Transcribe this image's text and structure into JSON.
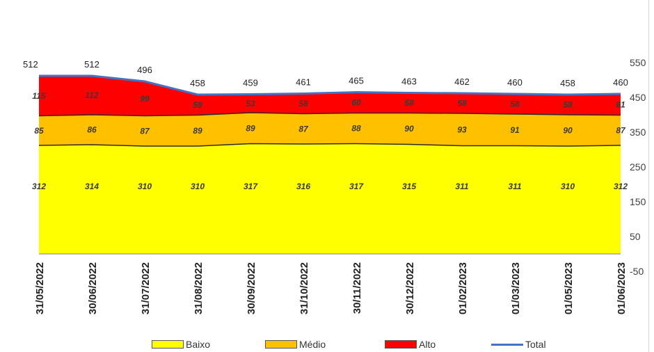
{
  "chart_data": {
    "type": "area",
    "categories": [
      "31/05/2022",
      "30/06/2022",
      "31/07/2022",
      "31/08/2022",
      "30/09/2022",
      "31/10/2022",
      "30/11/2022",
      "30/12/2022",
      "01/02/2023",
      "01/03/2023",
      "01/05/2023",
      "01/06/2023"
    ],
    "series": [
      {
        "name": "Baixo",
        "color": "#ffff00",
        "values": [
          312,
          314,
          310,
          310,
          317,
          316,
          317,
          315,
          311,
          311,
          310,
          312
        ]
      },
      {
        "name": "Médio",
        "color": "#ffc000",
        "values": [
          85,
          86,
          87,
          89,
          89,
          87,
          88,
          90,
          93,
          91,
          90,
          87
        ]
      },
      {
        "name": "Alto",
        "color": "#ff0000",
        "values": [
          115,
          112,
          99,
          59,
          53,
          58,
          60,
          58,
          58,
          58,
          58,
          61
        ]
      },
      {
        "name": "Total",
        "color": "#4472c4",
        "values": [
          512,
          512,
          496,
          458,
          459,
          461,
          465,
          463,
          462,
          460,
          458,
          460
        ]
      }
    ],
    "y_axis": {
      "position": "right",
      "ticks": [
        550,
        450,
        350,
        250,
        150,
        50,
        -50
      ],
      "range": [
        -50,
        550
      ]
    },
    "legend_position": "bottom",
    "grid": false
  },
  "legend": {
    "items": [
      {
        "label": "Baixo",
        "kind": "area",
        "color": "#ffff00"
      },
      {
        "label": "Médio",
        "kind": "area",
        "color": "#ffc000"
      },
      {
        "label": "Alto",
        "kind": "area",
        "color": "#ff0000"
      },
      {
        "label": "Total",
        "kind": "line",
        "color": "#4472c4"
      }
    ]
  }
}
